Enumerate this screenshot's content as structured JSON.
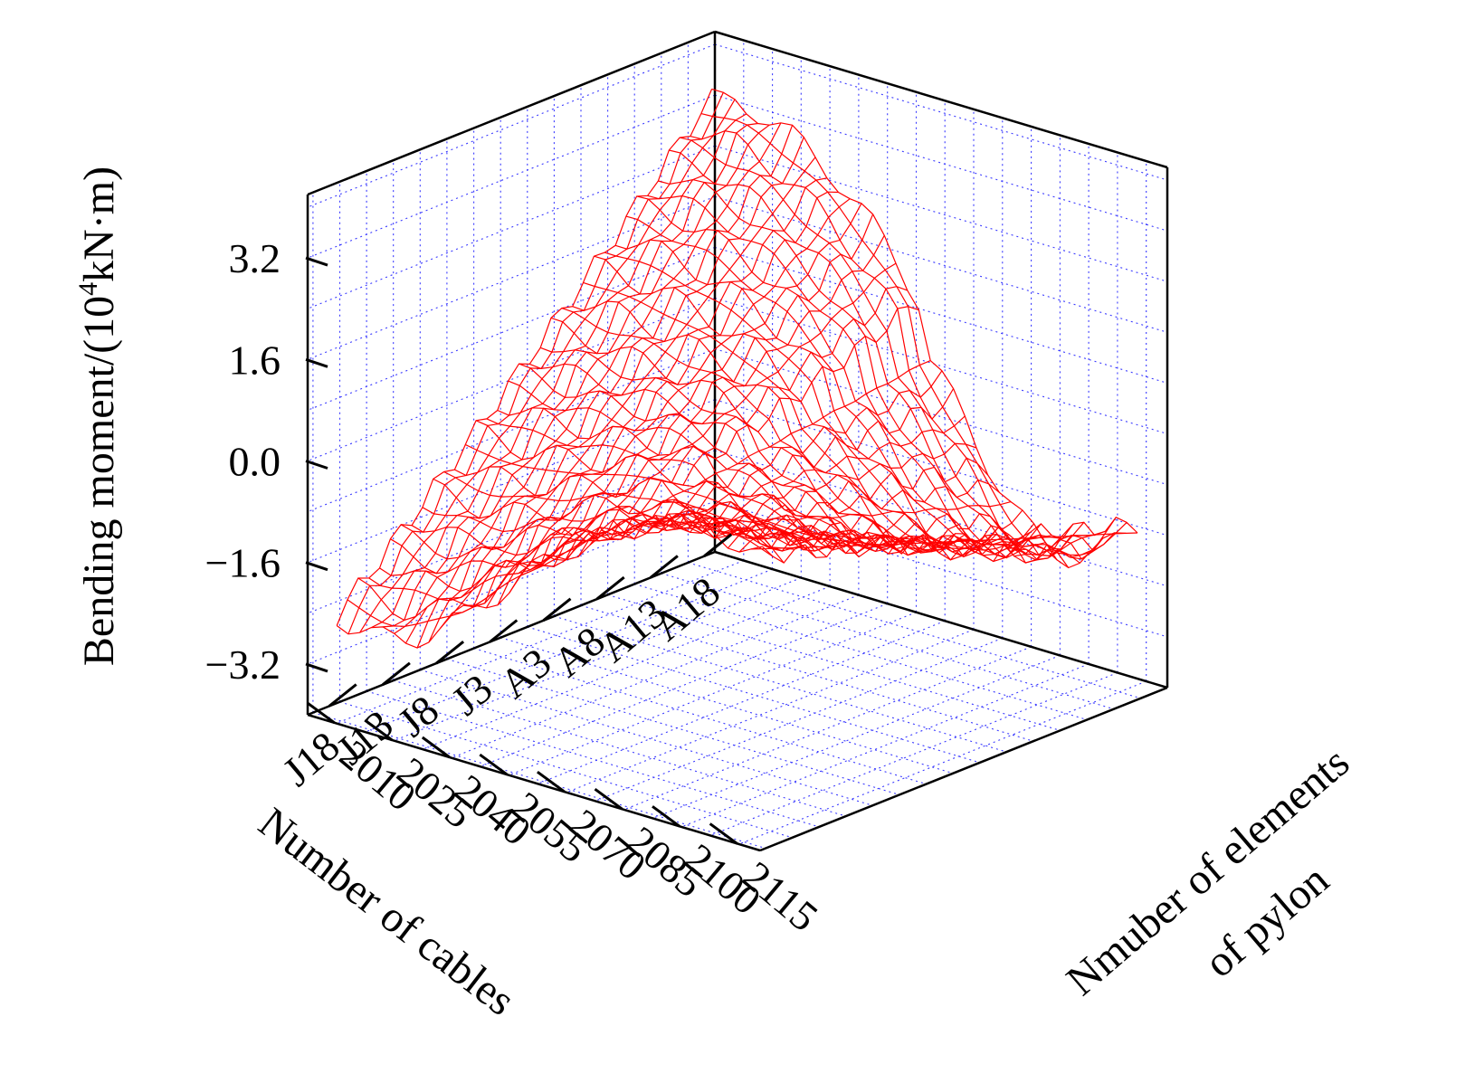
{
  "chart_data": {
    "type": "surface",
    "title": "",
    "zlabel": "Bending moment/(10",
    "zlabel_sup": "4",
    "zlabel_tail": "kN·m)",
    "xlabel": "Number of cables",
    "ylabel_line1": "Nmuber of elements",
    "ylabel_line2": "of pylon",
    "z_ticks": [
      3.2,
      1.6,
      0.0,
      -1.6,
      -3.2
    ],
    "z_tick_labels": [
      "3.2",
      "1.6",
      "0.0",
      "−1.6",
      "−3.2"
    ],
    "zlim": [
      -4.0,
      4.2
    ],
    "cable_ticks": [
      "A18",
      "A13",
      "A8",
      "A3",
      "J3",
      "J8",
      "J13",
      "J18"
    ],
    "cable_positions": [
      1,
      6,
      11,
      16,
      21,
      26,
      31,
      36
    ],
    "cable_range": [
      0,
      38
    ],
    "element_ticks": [
      2010,
      2025,
      2040,
      2055,
      2070,
      2085,
      2100,
      2115
    ],
    "element_range": [
      2003,
      2121
    ],
    "surface_color": "#ff0000",
    "grid_color": "#3a3aff"
  }
}
